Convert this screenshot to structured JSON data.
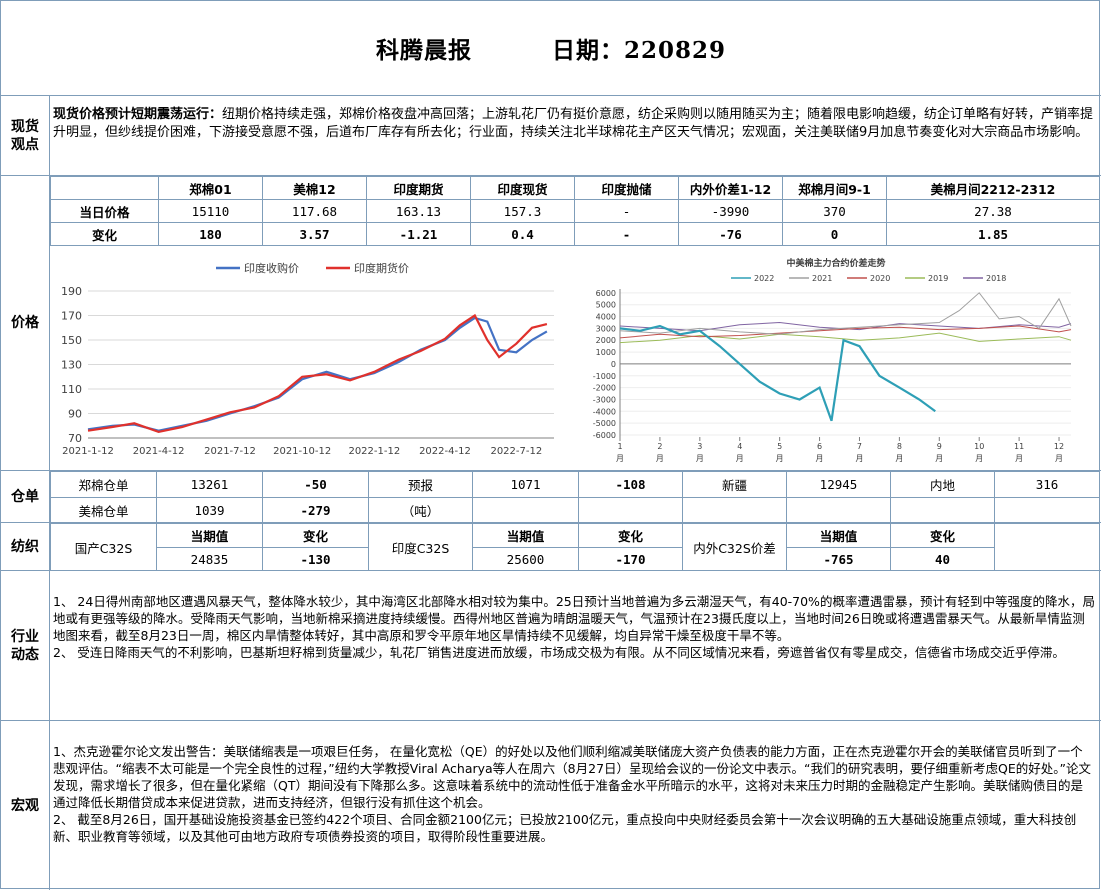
{
  "header": {
    "title": "科腾晨报",
    "date": "日期：220829"
  },
  "spot": {
    "label": "现货观点",
    "lead": "现货价格预计短期震荡运行：",
    "text": "纽期价格持续走强，郑棉价格夜盘冲高回落；上游轧花厂仍有挺价意愿，纺企采购则以随用随买为主；随着限电影响趋缓，纺企订单略有好转，产销率提升明显，但纱线提价困难，下游接受意愿不强，后道布厂库存有所去化；行业面，持续关注北半球棉花主产区天气情况；宏观面，关注美联储9月加息节奏变化对大宗商品市场影响。"
  },
  "price": {
    "label": "价格",
    "headers": [
      "郑棉01",
      "美棉12",
      "印度期货",
      "印度现货",
      "印度抛储",
      "内外价差1-12",
      "郑棉月间9-1",
      "美棉月间2212-2312"
    ],
    "today_label": "当日价格",
    "today": [
      "15110",
      "117.68",
      "163.13",
      "157.3",
      "-",
      "-3990",
      "370",
      "27.38"
    ],
    "change_label": "变化",
    "change": [
      "180",
      "3.57",
      "-1.21",
      "0.4",
      "-",
      "-76",
      "0",
      "1.85"
    ]
  },
  "chart_data": [
    {
      "type": "line",
      "title": "",
      "legend_placement": "top",
      "series": [
        {
          "name": "印度收购价",
          "color": "#4472c4",
          "x": [
            "2021-01-12",
            "2021-02-12",
            "2021-03-12",
            "2021-04-12",
            "2021-05-12",
            "2021-06-12",
            "2021-07-12",
            "2021-08-12",
            "2021-09-12",
            "2021-10-12",
            "2021-11-12",
            "2021-12-12",
            "2022-01-12",
            "2022-02-12",
            "2022-03-12",
            "2022-04-12",
            "2022-05-01",
            "2022-05-20",
            "2022-06-05",
            "2022-06-20",
            "2022-07-12",
            "2022-08-01",
            "2022-08-20"
          ],
          "values": [
            77,
            80,
            81,
            76,
            80,
            84,
            90,
            96,
            103,
            118,
            124,
            118,
            123,
            132,
            142,
            150,
            160,
            168,
            165,
            142,
            140,
            150,
            157
          ]
        },
        {
          "name": "印度期货价",
          "color": "#e0312c",
          "x": [
            "2021-01-12",
            "2021-02-12",
            "2021-03-12",
            "2021-04-12",
            "2021-05-12",
            "2021-06-12",
            "2021-07-12",
            "2021-08-12",
            "2021-09-12",
            "2021-10-12",
            "2021-11-12",
            "2021-12-12",
            "2022-01-12",
            "2022-02-12",
            "2022-03-12",
            "2022-04-12",
            "2022-05-01",
            "2022-05-20",
            "2022-06-05",
            "2022-06-20",
            "2022-07-12",
            "2022-08-01",
            "2022-08-20"
          ],
          "values": [
            76,
            79,
            82,
            75,
            79,
            85,
            91,
            95,
            104,
            120,
            122,
            117,
            124,
            134,
            141,
            151,
            162,
            170,
            150,
            136,
            147,
            160,
            163
          ]
        }
      ],
      "y_ticks": [
        "190",
        "170",
        "150",
        "130",
        "110",
        "90",
        "70"
      ],
      "ylim": [
        70,
        190
      ],
      "x_ticks": [
        "2021-1-12",
        "2021-4-12",
        "2021-7-12",
        "2021-10-12",
        "2022-1-12",
        "2022-4-12",
        "2022-7-12"
      ],
      "grid": "horizontal"
    },
    {
      "type": "line",
      "title": "中美棉主力合约价差走势",
      "legend_placement": "top",
      "series": [
        {
          "name": "2022",
          "color": "#2e9fb6",
          "x": [
            1,
            1.5,
            2,
            2.5,
            3,
            3.5,
            4,
            4.5,
            5,
            5.5,
            6,
            6.3,
            6.6,
            7,
            7.5,
            8,
            8.5,
            8.9
          ],
          "values": [
            3000,
            2800,
            3200,
            2500,
            2800,
            1500,
            0,
            -1500,
            -2500,
            -3000,
            -2000,
            -4800,
            2000,
            1500,
            -1000,
            -2000,
            -3000,
            -4000
          ]
        },
        {
          "name": "2021",
          "color": "#a0a0a0",
          "x": [
            1,
            2,
            3,
            4,
            5,
            6,
            7,
            8,
            9,
            9.5,
            10,
            10.5,
            11,
            11.5,
            12,
            12.3
          ],
          "values": [
            2800,
            2600,
            3000,
            2700,
            2500,
            2900,
            3100,
            3300,
            3500,
            4500,
            6000,
            3800,
            4000,
            3000,
            5500,
            3200
          ]
        },
        {
          "name": "2020",
          "color": "#c0504d",
          "x": [
            1,
            2,
            3,
            4,
            5,
            6,
            7,
            8,
            9,
            10,
            11,
            12,
            12.3
          ],
          "values": [
            2200,
            2500,
            2300,
            2400,
            2600,
            2800,
            3000,
            3100,
            2900,
            3000,
            3200,
            2700,
            2900
          ]
        },
        {
          "name": "2019",
          "color": "#9bbb59",
          "x": [
            1,
            2,
            3,
            4,
            5,
            6,
            7,
            8,
            9,
            10,
            11,
            12,
            12.3
          ],
          "values": [
            1800,
            2000,
            2400,
            2100,
            2500,
            2300,
            2000,
            2200,
            2600,
            1900,
            2100,
            2300,
            2000
          ]
        },
        {
          "name": "2018",
          "color": "#8064a2",
          "x": [
            1,
            2,
            3,
            4,
            5,
            6,
            7,
            8,
            9,
            10,
            11,
            12,
            12.3
          ],
          "values": [
            3200,
            3000,
            2800,
            3300,
            3500,
            3100,
            2900,
            3400,
            3200,
            3000,
            3300,
            3100,
            3400
          ]
        }
      ],
      "y_ticks": [
        "7000",
        "6000",
        "5000",
        "4000",
        "3000",
        "2000",
        "1000",
        "0",
        "-1000",
        "-2000",
        "-3000",
        "-4000",
        "-5000",
        "-6000"
      ],
      "ylim": [
        -6000,
        7000
      ],
      "x_ticks": [
        "1",
        "2",
        "3",
        "4",
        "5",
        "6",
        "7",
        "8",
        "9",
        "10",
        "11",
        "12"
      ],
      "x_unit": "月"
    }
  ],
  "warehouse": {
    "label": "仓单",
    "r1": [
      "郑棉仓单",
      "13261",
      "-50",
      "预报",
      "1071",
      "-108",
      "新疆",
      "12945",
      "内地",
      "316"
    ],
    "r2": [
      "美棉仓单",
      "1039",
      "-279",
      "（吨）"
    ]
  },
  "yarn": {
    "label": "纺织",
    "current_label": "当期值",
    "change_label": "变化",
    "domestic": {
      "name": "国产C32S",
      "value": "24835",
      "change": "-130"
    },
    "india": {
      "name": "印度C32S",
      "value": "25600",
      "change": "-170"
    },
    "spread": {
      "name": "内外C32S价差",
      "value": "-765",
      "change": "40"
    }
  },
  "industry": {
    "label": "行业动态",
    "p1": "1、 24日得州南部地区遭遇风暴天气，整体降水较少，其中海湾区北部降水相对较为集中。25日预计当地普遍为多云潮湿天气，有40-70%的概率遭遇雷暴，预计有轻到中等强度的降水，局地或有更强等级的降水。受降雨天气影响，当地新棉采摘进度持续缓慢。西得州地区普遍为晴朗温暖天气，气温预计在23摄氏度以上，当地时间26日晚或将遭遇雷暴天气。从最新旱情监测地图来看，截至8月23日一周，棉区内旱情整体转好，其中高原和罗令平原年地区旱情持续不见缓解，均自异常干燥至极度干旱不等。",
    "p2": "2、 受连日降雨天气的不利影响，巴基斯坦籽棉到货量减少，轧花厂销售进度进而放缓，市场成交极为有限。从不同区域情况来看，旁遮普省仅有零星成交，信德省市场成交近乎停滞。"
  },
  "macro": {
    "label": "宏观",
    "p1": "1、杰克逊霍尔论文发出警告：美联储缩表是一项艰巨任务， 在量化宽松（QE）的好处以及他们顺利缩减美联储庞大资产负债表的能力方面，正在杰克逊霍尔开会的美联储官员听到了一个悲观评估。“缩表不太可能是一个完全良性的过程，”纽约大学教授Viral Acharya等人在周六（8月27日）呈现给会议的一份论文中表示。“我们的研究表明，要仔细重新考虑QE的好处。”论文发现，需求增长了很多，但在量化紧缩（QT）期间没有下降那么多。这意味着系统中的流动性低于准备金水平所暗示的水平，这将对未来压力时期的金融稳定产生影响。美联储购债目的是通过降低长期借贷成本来促进贷款，进而支持经济，但银行没有抓住这个机会。",
    "p2": "2、 截至8月26日，国开基础设施投资基金已签约422个项目、合同金额2100亿元；已投放2100亿元，重点投向中央财经委员会第十一次会议明确的五大基础设施重点领域，重大科技创新、职业教育等领域，以及其他可由地方政府专项债券投资的项目，取得阶段性重要进展。"
  }
}
